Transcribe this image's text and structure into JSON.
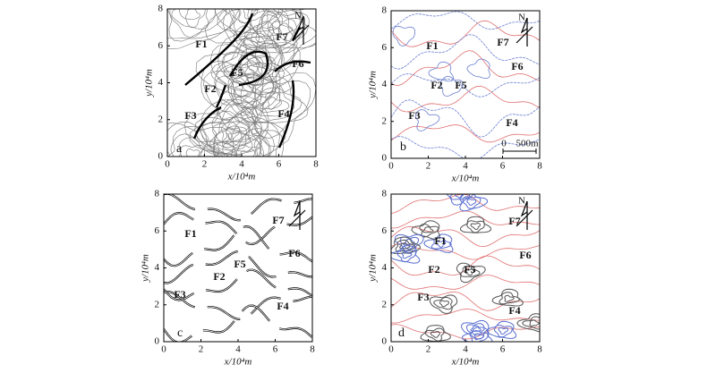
{
  "panels": [
    {
      "label": "a",
      "x_label": "x/10⁴m",
      "y_label": "y/10⁴m",
      "x_ticks": [
        0,
        2,
        4,
        6,
        8
      ],
      "y_ticks": [
        0,
        2,
        4,
        6,
        8
      ],
      "north": "N",
      "faults": [
        "F1",
        "F7",
        "F6",
        "F5",
        "F2",
        "F3",
        "F4"
      ]
    },
    {
      "label": "b",
      "x_label": "x/10⁴m",
      "y_label": "y/10⁴m",
      "x_ticks": [
        0,
        2,
        4,
        6,
        8
      ],
      "y_ticks": [
        0,
        2,
        4,
        6,
        8
      ],
      "north": "N",
      "faults": [
        "F1",
        "F7",
        "F6",
        "F2",
        "F5",
        "F3",
        "F4"
      ],
      "scale_bar": [
        "0",
        "500m"
      ]
    },
    {
      "label": "c",
      "x_label": "x/10⁴m",
      "y_label": "y/10⁴m",
      "x_ticks": [
        0,
        2,
        4,
        6,
        8
      ],
      "y_ticks": [
        0,
        2,
        4,
        6,
        8
      ],
      "faults": [
        "F1",
        "F7",
        "F6",
        "F5",
        "F2",
        "F3",
        "F4"
      ]
    },
    {
      "label": "d",
      "x_label": "x/10⁴m",
      "y_label": "y/10⁴m",
      "x_ticks": [
        0,
        2,
        4,
        6,
        8
      ],
      "y_ticks": [
        0,
        2,
        4,
        6,
        8
      ],
      "north": "N",
      "faults": [
        "F7",
        "F1",
        "F6",
        "F2",
        "F5",
        "F3",
        "F4"
      ]
    }
  ]
}
